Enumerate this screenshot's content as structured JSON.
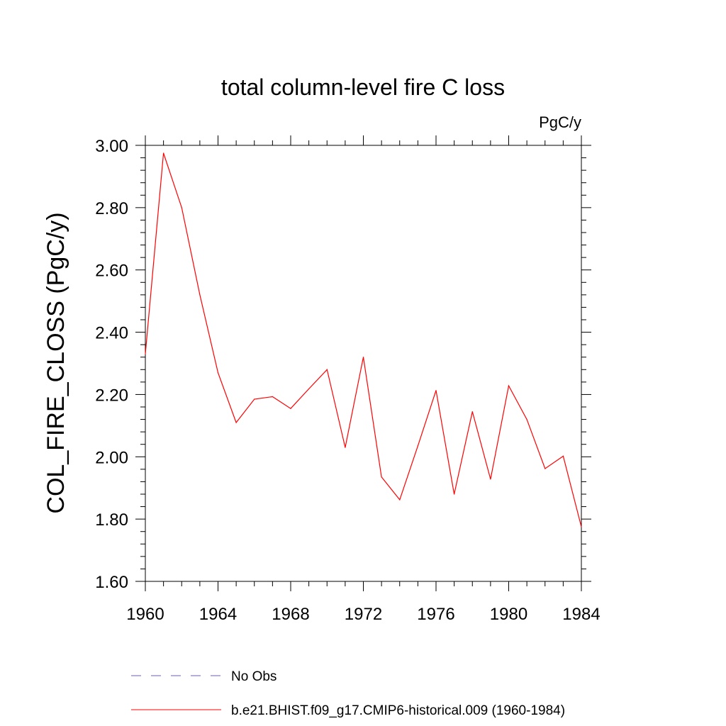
{
  "chart_data": {
    "type": "line",
    "title": "total column-level fire C loss",
    "units": "PgC/y",
    "xlabel": "",
    "ylabel": "COL_FIRE_CLOSS  (PgC/y)",
    "xlim": [
      1960,
      1984
    ],
    "ylim": [
      1.6,
      3.0
    ],
    "x_ticks": [
      1960,
      1964,
      1968,
      1972,
      1976,
      1980,
      1984
    ],
    "x_tick_labels": [
      "1960",
      "1964",
      "1968",
      "1972",
      "1976",
      "1980",
      "1984"
    ],
    "y_ticks": [
      1.6,
      1.8,
      2.0,
      2.2,
      2.4,
      2.6,
      2.8,
      3.0
    ],
    "y_tick_labels": [
      "1.60",
      "1.80",
      "2.00",
      "2.20",
      "2.40",
      "2.60",
      "2.80",
      "3.00"
    ],
    "x_minor_step": 1,
    "y_minor_step": 0.04,
    "grid": false,
    "legend_position": "bottom",
    "series": [
      {
        "name": "b.e21.BHIST.f09_g17.CMIP6-historical.009 (1960-1984)",
        "color": "#ff0000",
        "style": "solid",
        "x": [
          1960,
          1961,
          1962,
          1963,
          1964,
          1965,
          1966,
          1967,
          1968,
          1969,
          1970,
          1971,
          1972,
          1973,
          1974,
          1975,
          1976,
          1977,
          1978,
          1979,
          1980,
          1981,
          1982,
          1983,
          1984
        ],
        "values": [
          2.33,
          2.975,
          2.8,
          2.52,
          2.27,
          2.11,
          2.185,
          2.193,
          2.155,
          2.218,
          2.28,
          2.03,
          2.32,
          1.935,
          1.862,
          2.035,
          2.213,
          1.88,
          2.145,
          1.928,
          2.228,
          2.12,
          1.962,
          2.002,
          1.775
        ]
      }
    ],
    "legend": [
      {
        "label": "No Obs",
        "color": "#6b5fb8",
        "style": "dashed"
      },
      {
        "label": "b.e21.BHIST.f09_g17.CMIP6-historical.009 (1960-1984)",
        "color": "#ff0000",
        "style": "solid"
      }
    ]
  }
}
